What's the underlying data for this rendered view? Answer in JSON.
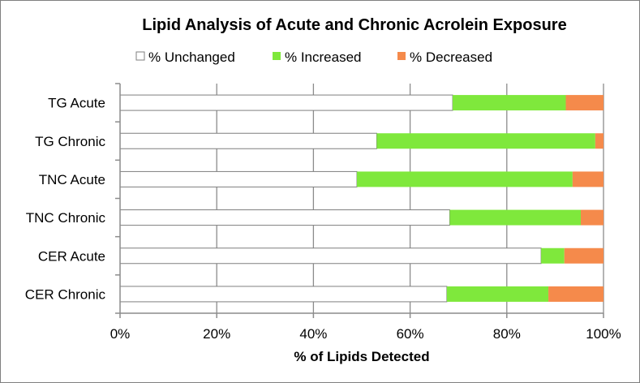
{
  "chart_data": {
    "type": "bar",
    "stacked": true,
    "orientation": "horizontal",
    "title": "Lipid Analysis of Acute and Chronic Acrolein Exposure",
    "xlabel": "% of Lipids Detected",
    "ylabel": "",
    "xlim": [
      0,
      100
    ],
    "xticks": [
      "0%",
      "20%",
      "40%",
      "60%",
      "80%",
      "100%"
    ],
    "grid": true,
    "legend_position": "top",
    "categories": [
      "TG Acute",
      "TG Chronic",
      "TNC Acute",
      "TNC Chronic",
      "CER Acute",
      "CER Chronic"
    ],
    "series": [
      {
        "name": "% Unchanged",
        "color": "#ffffff",
        "values": [
          68.8,
          53.1,
          49.0,
          68.2,
          87.1,
          67.6
        ]
      },
      {
        "name": "% Increased",
        "color": "#7fe83c",
        "values": [
          23.4,
          45.2,
          44.6,
          27.1,
          4.8,
          21.0
        ]
      },
      {
        "name": "% Decreased",
        "color": "#f58a4b",
        "values": [
          7.8,
          1.7,
          6.4,
          4.7,
          8.1,
          11.4
        ]
      }
    ]
  }
}
